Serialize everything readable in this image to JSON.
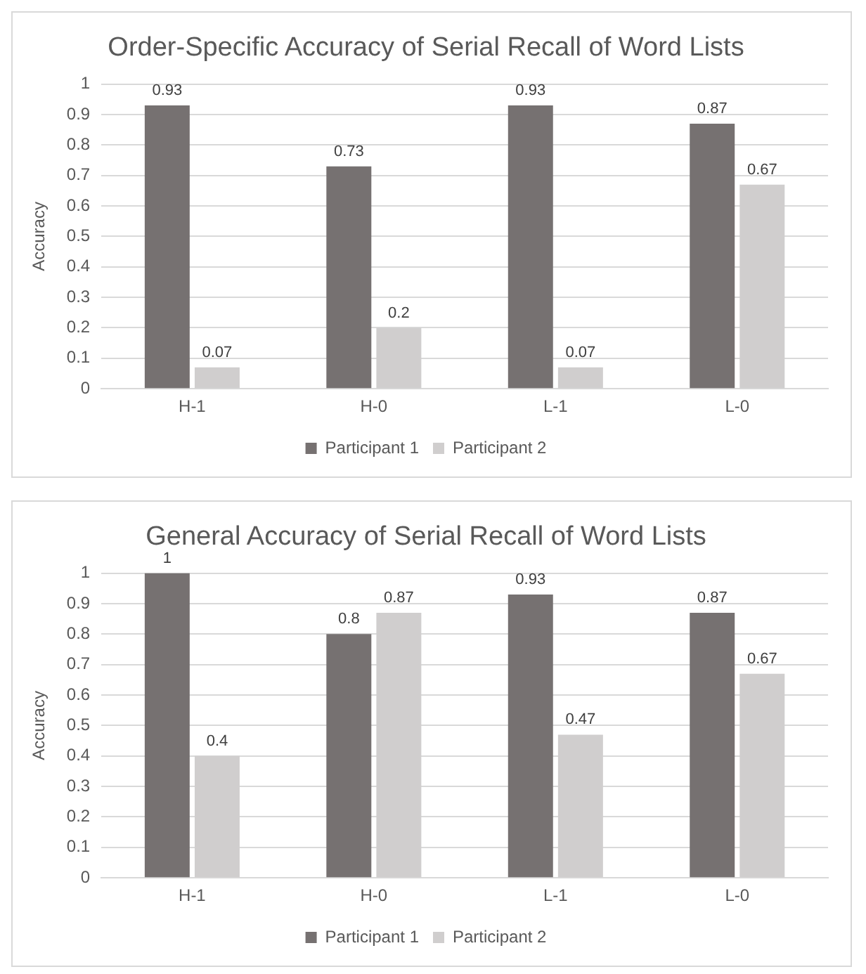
{
  "chart_data": [
    {
      "type": "bar",
      "title": "Order-Specific Accuracy of Serial Recall of Word Lists",
      "ylabel": "Accuracy",
      "categories": [
        "H-1",
        "H-0",
        "L-1",
        "L-0"
      ],
      "series": [
        {
          "name": "Participant 1",
          "color": "#767171",
          "values": [
            0.93,
            0.73,
            0.93,
            0.87
          ]
        },
        {
          "name": "Participant 2",
          "color": "#d0cece",
          "values": [
            0.07,
            0.2,
            0.07,
            0.67
          ]
        }
      ],
      "ylim": [
        0,
        1
      ],
      "yticks": [
        0,
        0.1,
        0.2,
        0.3,
        0.4,
        0.5,
        0.6,
        0.7,
        0.8,
        0.9,
        1
      ],
      "grid": "y",
      "legend": "bottom",
      "data_labels": true
    },
    {
      "type": "bar",
      "title": "General Accuracy of Serial Recall of Word Lists",
      "ylabel": "Accuracy",
      "categories": [
        "H-1",
        "H-0",
        "L-1",
        "L-0"
      ],
      "series": [
        {
          "name": "Participant 1",
          "color": "#767171",
          "values": [
            1,
            0.8,
            0.93,
            0.87
          ]
        },
        {
          "name": "Participant 2",
          "color": "#d0cece",
          "values": [
            0.4,
            0.87,
            0.47,
            0.67
          ]
        }
      ],
      "ylim": [
        0,
        1
      ],
      "yticks": [
        0,
        0.1,
        0.2,
        0.3,
        0.4,
        0.5,
        0.6,
        0.7,
        0.8,
        0.9,
        1
      ],
      "grid": "y",
      "legend": "bottom",
      "data_labels": true
    }
  ]
}
